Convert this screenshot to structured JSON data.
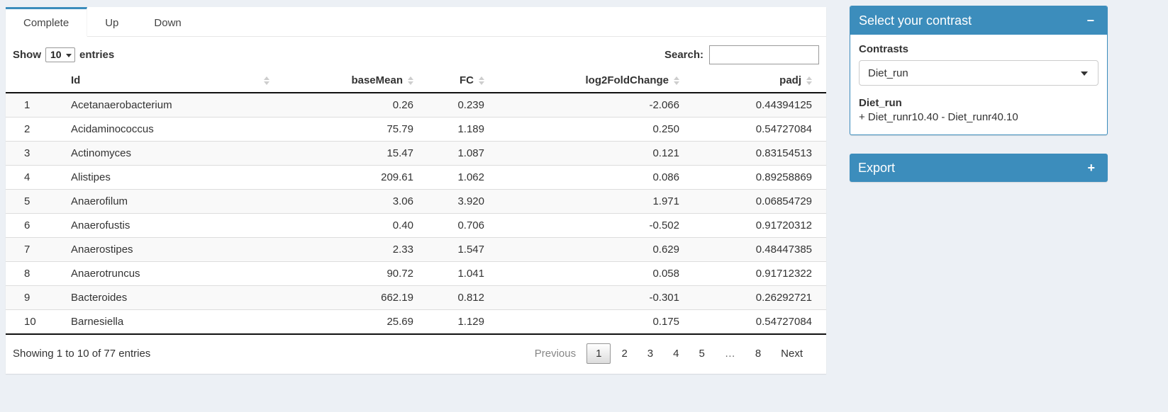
{
  "tabs": [
    {
      "label": "Complete",
      "active": true
    },
    {
      "label": "Up",
      "active": false
    },
    {
      "label": "Down",
      "active": false
    }
  ],
  "table": {
    "show_label": "Show",
    "entries_label": "entries",
    "page_length": "10",
    "search_label": "Search:",
    "search_value": "",
    "columns": [
      "Id",
      "baseMean",
      "FC",
      "log2FoldChange",
      "padj"
    ],
    "rows": [
      {
        "n": "1",
        "id": "Acetanaerobacterium",
        "baseMean": "0.26",
        "fc": "0.239",
        "log2fc": "-2.066",
        "padj": "0.44394125"
      },
      {
        "n": "2",
        "id": "Acidaminococcus",
        "baseMean": "75.79",
        "fc": "1.189",
        "log2fc": "0.250",
        "padj": "0.54727084"
      },
      {
        "n": "3",
        "id": "Actinomyces",
        "baseMean": "15.47",
        "fc": "1.087",
        "log2fc": "0.121",
        "padj": "0.83154513"
      },
      {
        "n": "4",
        "id": "Alistipes",
        "baseMean": "209.61",
        "fc": "1.062",
        "log2fc": "0.086",
        "padj": "0.89258869"
      },
      {
        "n": "5",
        "id": "Anaerofilum",
        "baseMean": "3.06",
        "fc": "3.920",
        "log2fc": "1.971",
        "padj": "0.06854729"
      },
      {
        "n": "6",
        "id": "Anaerofustis",
        "baseMean": "0.40",
        "fc": "0.706",
        "log2fc": "-0.502",
        "padj": "0.91720312"
      },
      {
        "n": "7",
        "id": "Anaerostipes",
        "baseMean": "2.33",
        "fc": "1.547",
        "log2fc": "0.629",
        "padj": "0.48447385"
      },
      {
        "n": "8",
        "id": "Anaerotruncus",
        "baseMean": "90.72",
        "fc": "1.041",
        "log2fc": "0.058",
        "padj": "0.91712322"
      },
      {
        "n": "9",
        "id": "Bacteroides",
        "baseMean": "662.19",
        "fc": "0.812",
        "log2fc": "-0.301",
        "padj": "0.26292721"
      },
      {
        "n": "10",
        "id": "Barnesiella",
        "baseMean": "25.69",
        "fc": "1.129",
        "log2fc": "0.175",
        "padj": "0.54727084"
      }
    ],
    "info": "Showing 1 to 10 of 77 entries",
    "pagination": {
      "previous": "Previous",
      "pages": [
        "1",
        "2",
        "3",
        "4",
        "5",
        "…",
        "8"
      ],
      "current": "1",
      "ellipsis": "…",
      "next": "Next"
    }
  },
  "sidebar": {
    "contrast_box": {
      "title": "Select your contrast",
      "collapse_icon": "−",
      "contrasts_label": "Contrasts",
      "selected_contrast": "Diet_run",
      "contrast_name": "Diet_run",
      "contrast_formula": "+ Diet_runr10.40 - Diet_runr40.10"
    },
    "export_box": {
      "title": "Export",
      "expand_icon": "+"
    }
  },
  "colors": {
    "accent": "#3c8dbc",
    "page_background": "#ecf0f5",
    "stripe": "#f9f9f9"
  }
}
